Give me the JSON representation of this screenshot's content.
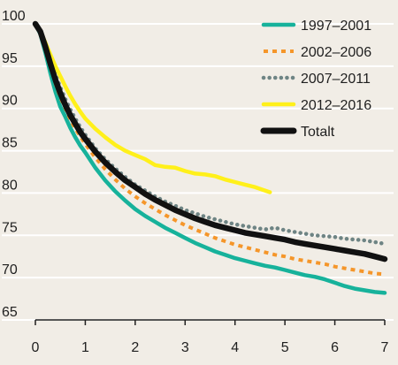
{
  "chart_data": {
    "type": "line",
    "title": "",
    "xlabel": "",
    "ylabel": "",
    "xlim": [
      0,
      7
    ],
    "ylim": [
      65,
      100
    ],
    "x_ticks": [
      "0",
      "1",
      "2",
      "3",
      "4",
      "5",
      "6",
      "7"
    ],
    "y_ticks": [
      "65",
      "70",
      "75",
      "80",
      "85",
      "90",
      "95",
      "100"
    ],
    "grid": "horizontal",
    "legend_position": "top-right",
    "background_color": "#f1ede6",
    "series": [
      {
        "name": "1997–2001",
        "color": "#17b29b",
        "style": "solid",
        "points": [
          [
            0,
            100
          ],
          [
            0.1,
            98.8
          ],
          [
            0.2,
            96.6
          ],
          [
            0.3,
            94.2
          ],
          [
            0.4,
            92
          ],
          [
            0.5,
            90.2
          ],
          [
            0.6,
            89
          ],
          [
            0.7,
            87.7
          ],
          [
            0.8,
            86.6
          ],
          [
            0.9,
            85.6
          ],
          [
            1,
            84.8
          ],
          [
            1.2,
            83
          ],
          [
            1.4,
            81.5
          ],
          [
            1.6,
            80.2
          ],
          [
            1.8,
            79.1
          ],
          [
            2,
            78.1
          ],
          [
            2.2,
            77.3
          ],
          [
            2.4,
            76.6
          ],
          [
            2.6,
            75.9
          ],
          [
            2.8,
            75.3
          ],
          [
            3,
            74.7
          ],
          [
            3.2,
            74.1
          ],
          [
            3.4,
            73.6
          ],
          [
            3.6,
            73.1
          ],
          [
            3.8,
            72.7
          ],
          [
            4,
            72.3
          ],
          [
            4.2,
            72
          ],
          [
            4.4,
            71.7
          ],
          [
            4.6,
            71.4
          ],
          [
            4.8,
            71.2
          ],
          [
            5,
            70.9
          ],
          [
            5.2,
            70.6
          ],
          [
            5.4,
            70.3
          ],
          [
            5.6,
            70.1
          ],
          [
            5.8,
            69.8
          ],
          [
            6,
            69.4
          ],
          [
            6.2,
            69
          ],
          [
            6.4,
            68.7
          ],
          [
            6.6,
            68.5
          ],
          [
            6.8,
            68.3
          ],
          [
            7,
            68.2
          ]
        ]
      },
      {
        "name": "2002–2006",
        "color": "#f5962a",
        "style": "dashed",
        "points": [
          [
            0,
            100
          ],
          [
            0.1,
            99
          ],
          [
            0.2,
            97.1
          ],
          [
            0.3,
            95
          ],
          [
            0.4,
            93
          ],
          [
            0.5,
            91.3
          ],
          [
            0.6,
            90
          ],
          [
            0.7,
            88.7
          ],
          [
            0.8,
            87.6
          ],
          [
            0.9,
            86.7
          ],
          [
            1,
            85.8
          ],
          [
            1.2,
            84.2
          ],
          [
            1.4,
            82.8
          ],
          [
            1.6,
            81.6
          ],
          [
            1.8,
            80.5
          ],
          [
            2,
            79.6
          ],
          [
            2.2,
            78.8
          ],
          [
            2.4,
            78.1
          ],
          [
            2.6,
            77.4
          ],
          [
            2.8,
            76.8
          ],
          [
            3,
            76.2
          ],
          [
            3.2,
            75.7
          ],
          [
            3.4,
            75.2
          ],
          [
            3.6,
            74.7
          ],
          [
            3.8,
            74.3
          ],
          [
            4,
            73.9
          ],
          [
            4.2,
            73.6
          ],
          [
            4.4,
            73.3
          ],
          [
            4.6,
            73
          ],
          [
            4.8,
            72.7
          ],
          [
            5,
            72.5
          ],
          [
            5.2,
            72.2
          ],
          [
            5.4,
            72
          ],
          [
            5.6,
            71.8
          ],
          [
            5.8,
            71.6
          ],
          [
            6,
            71.3
          ],
          [
            6.2,
            71.1
          ],
          [
            6.4,
            70.9
          ],
          [
            6.6,
            70.7
          ],
          [
            6.8,
            70.5
          ],
          [
            7,
            70.4
          ]
        ]
      },
      {
        "name": "2007–2011",
        "color": "#6e8484",
        "style": "dotted",
        "points": [
          [
            0,
            100
          ],
          [
            0.1,
            99.2
          ],
          [
            0.2,
            97.6
          ],
          [
            0.3,
            95.8
          ],
          [
            0.4,
            94
          ],
          [
            0.5,
            92.5
          ],
          [
            0.6,
            91.1
          ],
          [
            0.7,
            89.9
          ],
          [
            0.8,
            88.8
          ],
          [
            0.9,
            87.8
          ],
          [
            1,
            86.9
          ],
          [
            1.2,
            85.3
          ],
          [
            1.4,
            84
          ],
          [
            1.6,
            82.9
          ],
          [
            1.8,
            81.9
          ],
          [
            2,
            81
          ],
          [
            2.2,
            80.3
          ],
          [
            2.4,
            79.6
          ],
          [
            2.6,
            79
          ],
          [
            2.8,
            78.5
          ],
          [
            3,
            78
          ],
          [
            3.2,
            77.6
          ],
          [
            3.4,
            77.2
          ],
          [
            3.6,
            76.9
          ],
          [
            3.8,
            76.6
          ],
          [
            4,
            76.3
          ],
          [
            4.2,
            76.1
          ],
          [
            4.4,
            75.9
          ],
          [
            4.6,
            75.7
          ],
          [
            4.8,
            75.9
          ],
          [
            5,
            75.6
          ],
          [
            5.2,
            75.4
          ],
          [
            5.4,
            75.2
          ],
          [
            5.6,
            75
          ],
          [
            5.8,
            74.9
          ],
          [
            6,
            74.8
          ],
          [
            6.2,
            74.6
          ],
          [
            6.4,
            74.5
          ],
          [
            6.6,
            74.4
          ],
          [
            6.8,
            74.2
          ],
          [
            7,
            74
          ]
        ]
      },
      {
        "name": "2012–2016",
        "color": "#fff01a",
        "style": "solid",
        "points": [
          [
            0,
            100
          ],
          [
            0.1,
            99.1
          ],
          [
            0.2,
            97.8
          ],
          [
            0.3,
            96.4
          ],
          [
            0.4,
            95
          ],
          [
            0.5,
            93.8
          ],
          [
            0.6,
            92.6
          ],
          [
            0.7,
            91.5
          ],
          [
            0.8,
            90.5
          ],
          [
            0.9,
            89.6
          ],
          [
            1,
            88.8
          ],
          [
            1.2,
            87.6
          ],
          [
            1.4,
            86.6
          ],
          [
            1.6,
            85.7
          ],
          [
            1.8,
            85
          ],
          [
            2,
            84.5
          ],
          [
            2.2,
            84
          ],
          [
            2.4,
            83.3
          ],
          [
            2.6,
            83.1
          ],
          [
            2.8,
            83
          ],
          [
            3,
            82.6
          ],
          [
            3.2,
            82.3
          ],
          [
            3.4,
            82.2
          ],
          [
            3.6,
            82
          ],
          [
            3.8,
            81.6
          ],
          [
            4,
            81.3
          ],
          [
            4.2,
            81
          ],
          [
            4.4,
            80.7
          ],
          [
            4.6,
            80.3
          ],
          [
            4.7,
            80.1
          ]
        ]
      },
      {
        "name": "Totalt",
        "color": "#111111",
        "style": "solid-bold",
        "points": [
          [
            0,
            100
          ],
          [
            0.1,
            99.1
          ],
          [
            0.2,
            97.3
          ],
          [
            0.3,
            95.3
          ],
          [
            0.4,
            93.4
          ],
          [
            0.5,
            91.8
          ],
          [
            0.6,
            90.4
          ],
          [
            0.7,
            89.2
          ],
          [
            0.8,
            88.2
          ],
          [
            0.9,
            87.2
          ],
          [
            1,
            86.4
          ],
          [
            1.2,
            84.9
          ],
          [
            1.4,
            83.6
          ],
          [
            1.6,
            82.5
          ],
          [
            1.8,
            81.5
          ],
          [
            2,
            80.7
          ],
          [
            2.2,
            79.9
          ],
          [
            2.4,
            79.2
          ],
          [
            2.6,
            78.6
          ],
          [
            2.8,
            78
          ],
          [
            3,
            77.5
          ],
          [
            3.2,
            77
          ],
          [
            3.4,
            76.6
          ],
          [
            3.6,
            76.2
          ],
          [
            3.8,
            75.9
          ],
          [
            4,
            75.6
          ],
          [
            4.2,
            75.3
          ],
          [
            4.4,
            75.1
          ],
          [
            4.6,
            74.9
          ],
          [
            4.8,
            74.7
          ],
          [
            5,
            74.5
          ],
          [
            5.2,
            74.2
          ],
          [
            5.4,
            74
          ],
          [
            5.6,
            73.8
          ],
          [
            5.8,
            73.6
          ],
          [
            6,
            73.4
          ],
          [
            6.2,
            73.2
          ],
          [
            6.4,
            73
          ],
          [
            6.6,
            72.8
          ],
          [
            6.8,
            72.5
          ],
          [
            7,
            72.2
          ]
        ]
      }
    ]
  }
}
